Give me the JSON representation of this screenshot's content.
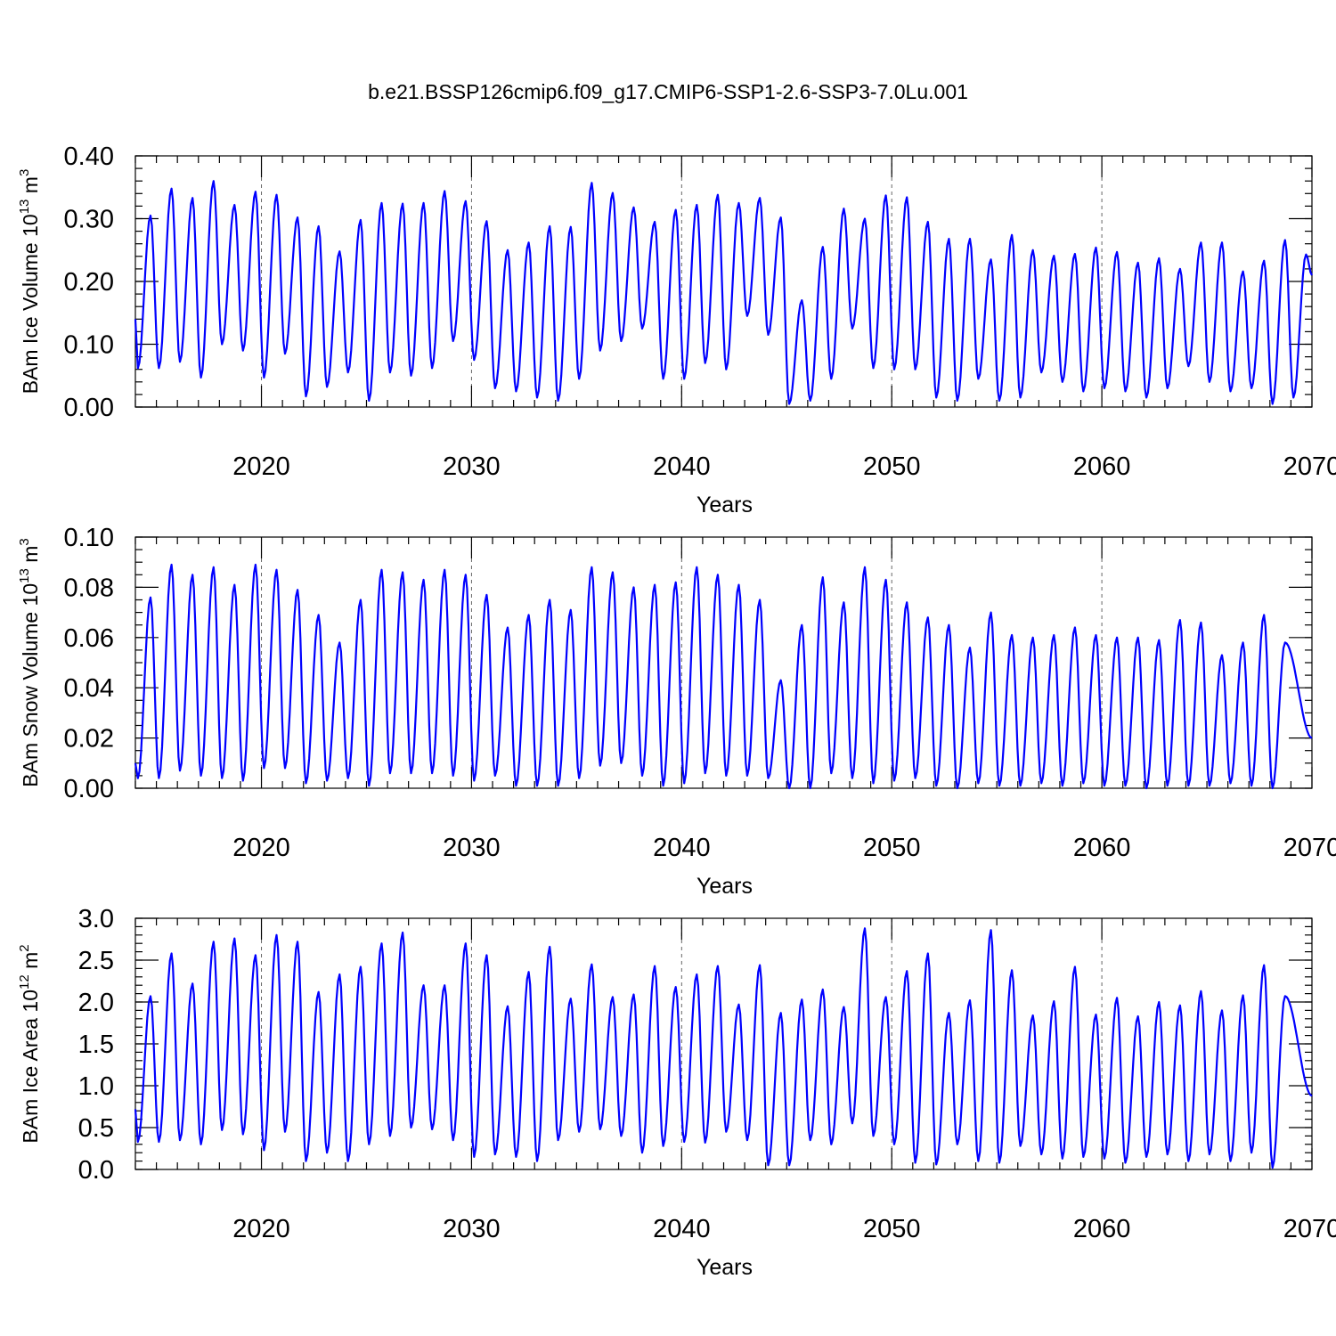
{
  "title": "b.e21.BSSP126cmip6.f09_g17.CMIP6-SSP1-2.6-SSP3-7.0Lu.001",
  "colors": {
    "line": "#0000ff",
    "axis": "#000000",
    "background": "#ffffff"
  },
  "chart_data": [
    {
      "type": "line",
      "panel": "ice-volume",
      "ylabel": {
        "prefix": "BAm Ice Volume 10",
        "exp": "13",
        "suffix": " m",
        "unit_exp": "3"
      },
      "xlabel": "Years",
      "xlim": [
        2014.0,
        2070.0
      ],
      "ylim": [
        0.0,
        0.4
      ],
      "yticks": [
        "0.00",
        "0.10",
        "0.20",
        "0.30",
        "0.40"
      ],
      "ytick_values": [
        0.0,
        0.1,
        0.2,
        0.3,
        0.4
      ],
      "yminor": 0.02,
      "xticks": [
        "2020",
        "2030",
        "2040",
        "2050",
        "2060",
        "2070"
      ],
      "xtick_values": [
        2020,
        2030,
        2040,
        2050,
        2060,
        2070
      ],
      "grid_x": [
        2020,
        2030,
        2040,
        2050,
        2060
      ],
      "start": 0.14,
      "end": 0.21,
      "series": [
        {
          "name": "BAm Ice Volume",
          "peaks": [
            0.305,
            0.348,
            0.333,
            0.36,
            0.322,
            0.343,
            0.338,
            0.302,
            0.288,
            0.248,
            0.298,
            0.325,
            0.324,
            0.325,
            0.344,
            0.328,
            0.296,
            0.25,
            0.262,
            0.288,
            0.287,
            0.357,
            0.341,
            0.318,
            0.295,
            0.314,
            0.322,
            0.338,
            0.325,
            0.333,
            0.302,
            0.17,
            0.255,
            0.316,
            0.3,
            0.337,
            0.334,
            0.295,
            0.268,
            0.268,
            0.235,
            0.274,
            0.25,
            0.241,
            0.244,
            0.254,
            0.247,
            0.23,
            0.237,
            0.22,
            0.262,
            0.262,
            0.216,
            0.233,
            0.266,
            0.243
          ],
          "troughs": [
            0.062,
            0.072,
            0.047,
            0.1,
            0.09,
            0.047,
            0.085,
            0.017,
            0.032,
            0.055,
            0.01,
            0.055,
            0.05,
            0.062,
            0.105,
            0.075,
            0.03,
            0.025,
            0.015,
            0.01,
            0.045,
            0.09,
            0.105,
            0.125,
            0.045,
            0.045,
            0.07,
            0.06,
            0.145,
            0.115,
            0.005,
            0.01,
            0.045,
            0.125,
            0.062,
            0.06,
            0.06,
            0.015,
            0.01,
            0.045,
            0.01,
            0.015,
            0.055,
            0.04,
            0.025,
            0.03,
            0.025,
            0.015,
            0.03,
            0.065,
            0.04,
            0.025,
            0.03,
            0.005,
            0.015
          ]
        }
      ]
    },
    {
      "type": "line",
      "panel": "snow-volume",
      "ylabel": {
        "prefix": "BAm Snow Volume 10",
        "exp": "13",
        "suffix": " m",
        "unit_exp": "3"
      },
      "xlabel": "Years",
      "xlim": [
        2014.0,
        2070.0
      ],
      "ylim": [
        0.0,
        0.1
      ],
      "yticks": [
        "0.00",
        "0.02",
        "0.04",
        "0.06",
        "0.08",
        "0.10"
      ],
      "ytick_values": [
        0.0,
        0.02,
        0.04,
        0.06,
        0.08,
        0.1
      ],
      "yminor": 0.005,
      "xticks": [
        "2020",
        "2030",
        "2040",
        "2050",
        "2060",
        "2070"
      ],
      "xtick_values": [
        2020,
        2030,
        2040,
        2050,
        2060,
        2070
      ],
      "grid_x": [
        2020,
        2030,
        2040,
        2050,
        2060
      ],
      "start": 0.01,
      "end": 0.02,
      "series": [
        {
          "name": "BAm Snow Volume",
          "peaks": [
            0.076,
            0.089,
            0.085,
            0.088,
            0.081,
            0.089,
            0.087,
            0.079,
            0.069,
            0.058,
            0.075,
            0.087,
            0.086,
            0.083,
            0.087,
            0.085,
            0.077,
            0.064,
            0.069,
            0.075,
            0.071,
            0.088,
            0.086,
            0.08,
            0.081,
            0.082,
            0.088,
            0.085,
            0.081,
            0.075,
            0.043,
            0.065,
            0.084,
            0.074,
            0.088,
            0.083,
            0.074,
            0.068,
            0.065,
            0.056,
            0.07,
            0.061,
            0.06,
            0.061,
            0.064,
            0.061,
            0.06,
            0.06,
            0.059,
            0.067,
            0.066,
            0.053,
            0.058,
            0.069,
            0.058
          ],
          "troughs": [
            0.004,
            0.007,
            0.005,
            0.004,
            0.003,
            0.008,
            0.008,
            0.002,
            0.003,
            0.004,
            0.001,
            0.006,
            0.006,
            0.006,
            0.005,
            0.003,
            0.005,
            0.001,
            0.001,
            0.001,
            0.004,
            0.009,
            0.01,
            0.005,
            0.001,
            0.002,
            0.006,
            0.005,
            0.005,
            0.004,
            0.0,
            0.0,
            0.006,
            0.004,
            0.002,
            0.003,
            0.004,
            0.001,
            0.0,
            0.002,
            0.001,
            0.001,
            0.002,
            0.001,
            0.002,
            0.001,
            0.001,
            0.0,
            0.001,
            0.001,
            0.001,
            0.002,
            0.001,
            0.0,
            0.001
          ]
        }
      ]
    },
    {
      "type": "line",
      "panel": "ice-area",
      "ylabel": {
        "prefix": "BAm Ice Area 10",
        "exp": "12",
        "suffix": " m",
        "unit_exp": "2"
      },
      "xlabel": "Years",
      "xlim": [
        2014.0,
        2070.0
      ],
      "ylim": [
        0.0,
        3.0
      ],
      "yticks": [
        "0.0",
        "0.5",
        "1.0",
        "1.5",
        "2.0",
        "2.5",
        "3.0"
      ],
      "ytick_values": [
        0.0,
        0.5,
        1.0,
        1.5,
        2.0,
        2.5,
        3.0
      ],
      "yminor": 0.1,
      "xticks": [
        "2020",
        "2030",
        "2040",
        "2050",
        "2060",
        "2070"
      ],
      "xtick_values": [
        2020,
        2030,
        2040,
        2050,
        2060,
        2070
      ],
      "grid_x": [
        2020,
        2030,
        2040,
        2050,
        2060
      ],
      "start": 0.72,
      "end": 0.88,
      "series": [
        {
          "name": "BAm Ice Area",
          "peaks": [
            2.07,
            2.58,
            2.22,
            2.72,
            2.76,
            2.56,
            2.8,
            2.72,
            2.12,
            2.33,
            2.42,
            2.7,
            2.83,
            2.2,
            2.2,
            2.7,
            2.56,
            1.95,
            2.36,
            2.66,
            2.04,
            2.45,
            2.06,
            2.09,
            2.43,
            2.18,
            2.33,
            2.43,
            1.97,
            2.44,
            1.87,
            2.03,
            2.15,
            1.94,
            2.88,
            2.06,
            2.37,
            2.58,
            1.87,
            2.02,
            2.86,
            2.38,
            1.84,
            2.01,
            2.42,
            1.85,
            2.05,
            1.83,
            2.0,
            1.96,
            2.13,
            1.9,
            2.08,
            2.44,
            2.07
          ],
          "troughs": [
            0.33,
            0.35,
            0.3,
            0.47,
            0.42,
            0.23,
            0.45,
            0.1,
            0.2,
            0.1,
            0.3,
            0.4,
            0.5,
            0.48,
            0.35,
            0.15,
            0.18,
            0.15,
            0.1,
            0.35,
            0.45,
            0.48,
            0.4,
            0.2,
            0.28,
            0.33,
            0.32,
            0.45,
            0.35,
            0.05,
            0.05,
            0.35,
            0.3,
            0.55,
            0.4,
            0.3,
            0.08,
            0.06,
            0.3,
            0.1,
            0.08,
            0.28,
            0.18,
            0.13,
            0.15,
            0.13,
            0.08,
            0.15,
            0.18,
            0.1,
            0.18,
            0.1,
            0.2,
            0.02,
            0.1
          ]
        }
      ]
    }
  ]
}
